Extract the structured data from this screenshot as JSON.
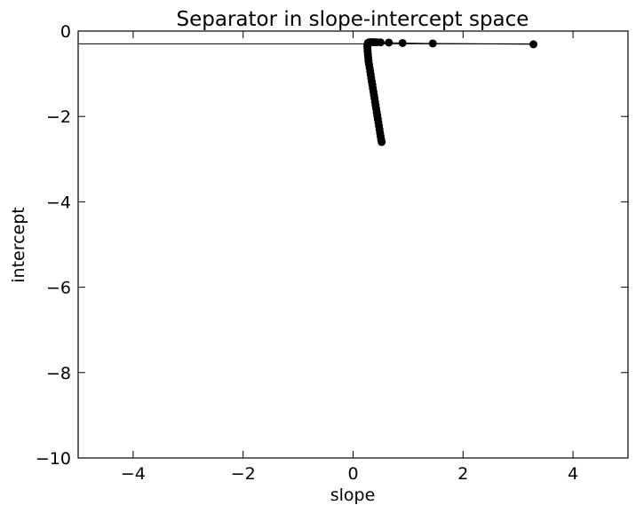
{
  "chart_data": {
    "type": "line",
    "title": "Separator in slope-intercept space",
    "xlabel": "slope",
    "ylabel": "intercept",
    "xlim": [
      -5,
      5
    ],
    "ylim": [
      -10,
      0
    ],
    "xticks": [
      {
        "value": -4,
        "label": "−4"
      },
      {
        "value": -2,
        "label": "−2"
      },
      {
        "value": 0,
        "label": "0"
      },
      {
        "value": 2,
        "label": "2"
      },
      {
        "value": 4,
        "label": "4"
      }
    ],
    "yticks": [
      {
        "value": 0,
        "label": "0"
      },
      {
        "value": -2,
        "label": "−2"
      },
      {
        "value": -4,
        "label": "−4"
      },
      {
        "value": -6,
        "label": "−6"
      },
      {
        "value": -8,
        "label": "−8"
      },
      {
        "value": -10,
        "label": "−10"
      }
    ],
    "grid": false,
    "legend": "none",
    "line_color": "#000000",
    "marker": "circle",
    "reference_line": {
      "y": -0.3,
      "x_from": -5,
      "x_to": 3.28
    },
    "series": [
      {
        "x": [
          3.28,
          1.45,
          0.9,
          0.65,
          0.5,
          0.43,
          0.38,
          0.34,
          0.31,
          0.29,
          0.28,
          0.27,
          0.265,
          0.26,
          0.26,
          0.262,
          0.265,
          0.27,
          0.275,
          0.28,
          0.29,
          0.3,
          0.31,
          0.32,
          0.33,
          0.34,
          0.35,
          0.36,
          0.37,
          0.38,
          0.39,
          0.4,
          0.41,
          0.42,
          0.43,
          0.44,
          0.45,
          0.46,
          0.47,
          0.48,
          0.49,
          0.5,
          0.51,
          0.52
        ],
        "y": [
          -0.31,
          -0.29,
          -0.28,
          -0.27,
          -0.265,
          -0.262,
          -0.26,
          -0.26,
          -0.262,
          -0.265,
          -0.27,
          -0.28,
          -0.3,
          -0.33,
          -0.37,
          -0.42,
          -0.48,
          -0.55,
          -0.62,
          -0.7,
          -0.78,
          -0.86,
          -0.94,
          -1.02,
          -1.1,
          -1.18,
          -1.26,
          -1.34,
          -1.42,
          -1.5,
          -1.58,
          -1.66,
          -1.74,
          -1.82,
          -1.9,
          -1.98,
          -2.06,
          -2.14,
          -2.22,
          -2.3,
          -2.38,
          -2.46,
          -2.54,
          -2.6
        ]
      }
    ]
  }
}
